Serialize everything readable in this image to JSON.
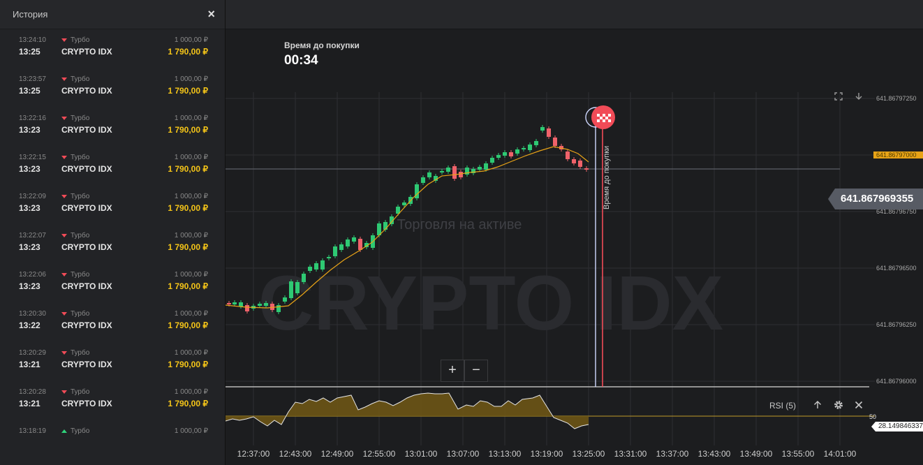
{
  "history": {
    "title": "История",
    "close_icon": "×",
    "deals": [
      {
        "open_time": "13:24:10",
        "close_time": "13:25",
        "direction": "down",
        "type": "Турбо",
        "asset": "CRYPTO IDX",
        "amount": "1 000,00 ₽",
        "payout": "1 790,00 ₽"
      },
      {
        "open_time": "13:23:57",
        "close_time": "13:25",
        "direction": "down",
        "type": "Турбо",
        "asset": "CRYPTO IDX",
        "amount": "1 000,00 ₽",
        "payout": "1 790,00 ₽"
      },
      {
        "open_time": "13:22:16",
        "close_time": "13:23",
        "direction": "down",
        "type": "Турбо",
        "asset": "CRYPTO IDX",
        "amount": "1 000,00 ₽",
        "payout": "1 790,00 ₽"
      },
      {
        "open_time": "13:22:15",
        "close_time": "13:23",
        "direction": "down",
        "type": "Турбо",
        "asset": "CRYPTO IDX",
        "amount": "1 000,00 ₽",
        "payout": "1 790,00 ₽"
      },
      {
        "open_time": "13:22:09",
        "close_time": "13:23",
        "direction": "down",
        "type": "Турбо",
        "asset": "CRYPTO IDX",
        "amount": "1 000,00 ₽",
        "payout": "1 790,00 ₽"
      },
      {
        "open_time": "13:22:07",
        "close_time": "13:23",
        "direction": "down",
        "type": "Турбо",
        "asset": "CRYPTO IDX",
        "amount": "1 000,00 ₽",
        "payout": "1 790,00 ₽"
      },
      {
        "open_time": "13:22:06",
        "close_time": "13:23",
        "direction": "down",
        "type": "Турбо",
        "asset": "CRYPTO IDX",
        "amount": "1 000,00 ₽",
        "payout": "1 790,00 ₽"
      },
      {
        "open_time": "13:20:30",
        "close_time": "13:22",
        "direction": "down",
        "type": "Турбо",
        "asset": "CRYPTO IDX",
        "amount": "1 000,00 ₽",
        "payout": "1 790,00 ₽"
      },
      {
        "open_time": "13:20:29",
        "close_time": "13:21",
        "direction": "down",
        "type": "Турбо",
        "asset": "CRYPTO IDX",
        "amount": "1 000,00 ₽",
        "payout": "1 790,00 ₽"
      },
      {
        "open_time": "13:20:28",
        "close_time": "13:21",
        "direction": "down",
        "type": "Турбо",
        "asset": "CRYPTO IDX",
        "amount": "1 000,00 ₽",
        "payout": "1 790,00 ₽"
      },
      {
        "open_time": "13:18:19",
        "close_time": "",
        "direction": "up",
        "type": "Турбо",
        "asset": "",
        "amount": "1 000,00 ₽",
        "payout": ""
      }
    ]
  },
  "countdown": {
    "label": "Время до покупки",
    "value": "00:34"
  },
  "chart": {
    "watermark": "CRYPTO IDX",
    "subtitle": "Торговля на активе",
    "current_price": "641.867969355",
    "price_ticks": [
      "641.86797250",
      "641.86797000",
      "641.86796750",
      "641.86796500",
      "641.86796250",
      "641.86796000"
    ],
    "time_ticks": [
      "12:37:00",
      "12:43:00",
      "12:49:00",
      "12:55:00",
      "13:01:00",
      "13:07:00",
      "13:13:00",
      "13:19:00",
      "13:25:00",
      "13:31:00",
      "13:37:00",
      "13:43:00",
      "13:49:00",
      "13:55:00",
      "14:01:00"
    ],
    "purchase_line_label": "Время до покупки",
    "colors": {
      "up": "#2ec973",
      "down": "#f0626a",
      "ma": "#e8a317",
      "purchase_line": "#f14b57",
      "expiry_line": "#cfd8ff"
    }
  },
  "rsi": {
    "label": "RSI (5)",
    "level": "50",
    "value": "28.149846337"
  },
  "zoom": {
    "plus": "+",
    "minus": "−"
  },
  "icons": {
    "fullscreen": "fullscreen-icon",
    "download": "download-icon",
    "arrow_up": "arrow-up-icon",
    "settings": "gear-icon",
    "close": "close-icon"
  }
}
